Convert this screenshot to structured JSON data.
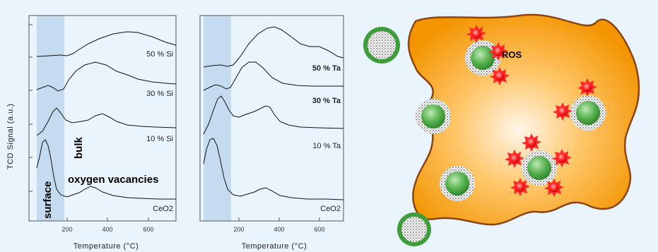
{
  "ylabel": "TCD Signal (a.u.)",
  "left_chart": {
    "xlabel": "Temperature (°C)",
    "x_ticks": [
      "200",
      "400",
      "600"
    ],
    "series": [
      "50 % Si",
      "30 % Si",
      "10 % Si",
      "CeO2"
    ],
    "annotations": {
      "surface": "surface",
      "bulk": "bulk",
      "vacancies": "oxygen vacancies"
    }
  },
  "right_chart": {
    "xlabel": "Temperature (°C)",
    "x_ticks": [
      "200",
      "400",
      "600"
    ],
    "series": [
      "50 % Ta",
      "30 % Ta",
      "10 % Ta",
      "CeO2"
    ]
  },
  "diagram": {
    "ros_label": "ROS"
  },
  "colors": {
    "shade": "#c5dcf0",
    "blob_center": "#fff4e0",
    "blob_edge": "#f29a00",
    "blob_outline": "#8b4513",
    "particle_green": "#3f9d3c",
    "ros_red": "#ff2a2a"
  }
}
